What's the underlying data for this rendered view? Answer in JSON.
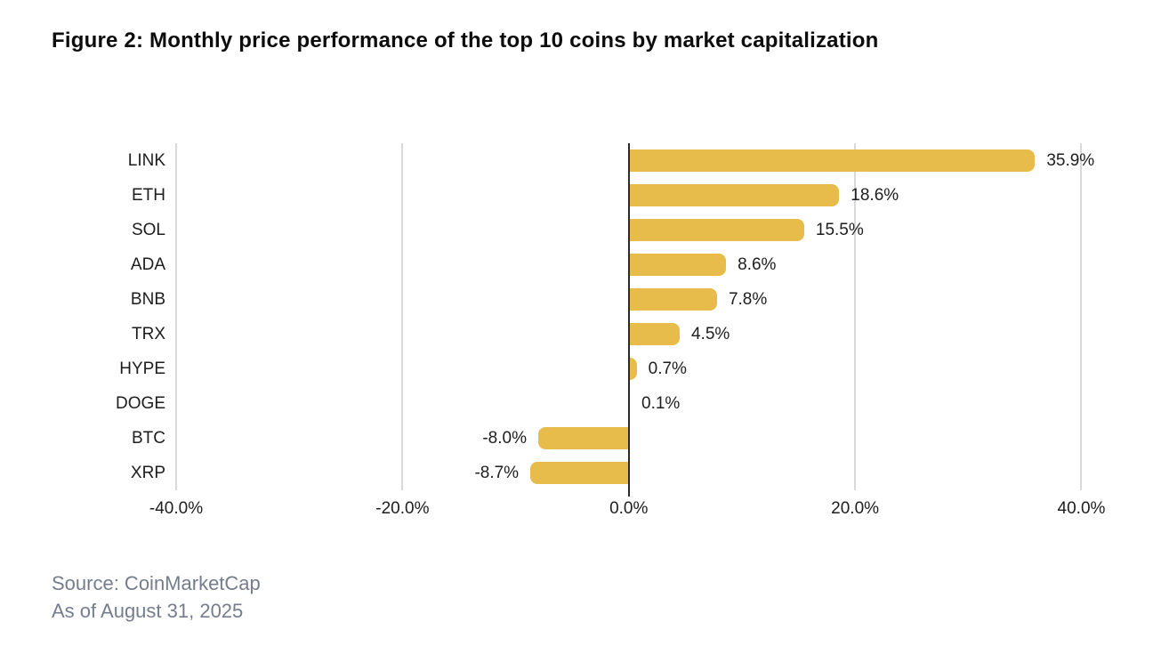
{
  "figure": {
    "title": "Figure 2: Monthly price performance of the top 10 coins by market capitalization",
    "source_line1": "Source: CoinMarketCap",
    "source_line2": "As of August 31, 2025"
  },
  "chart_data": {
    "type": "bar",
    "orientation": "horizontal",
    "title": "Figure 2: Monthly price performance of the top 10 coins by market capitalization",
    "categories": [
      "LINK",
      "ETH",
      "SOL",
      "ADA",
      "BNB",
      "TRX",
      "HYPE",
      "DOGE",
      "BTC",
      "XRP"
    ],
    "values": [
      35.9,
      18.6,
      15.5,
      8.6,
      7.8,
      4.5,
      0.7,
      0.1,
      -8.0,
      -8.7
    ],
    "value_labels": [
      "35.9%",
      "18.6%",
      "15.5%",
      "8.6%",
      "7.8%",
      "4.5%",
      "0.7%",
      "0.1%",
      "-8.0%",
      "-8.7%"
    ],
    "xlabel": "",
    "ylabel": "",
    "xlim": [
      -40,
      43.5
    ],
    "xticks": [
      -40,
      -20,
      0,
      20,
      40
    ],
    "xtick_labels": [
      "-40.0%",
      "-20.0%",
      "0.0%",
      "20.0%",
      "40.0%"
    ],
    "grid": "vertical-gridlines",
    "legend": "none",
    "bar_color": "#e8bc4b",
    "zero_line_color": "#2a2a2a",
    "gridline_color": "#d9d9d9",
    "source": "Source: CoinMarketCap",
    "as_of": "As of August 31, 2025"
  }
}
